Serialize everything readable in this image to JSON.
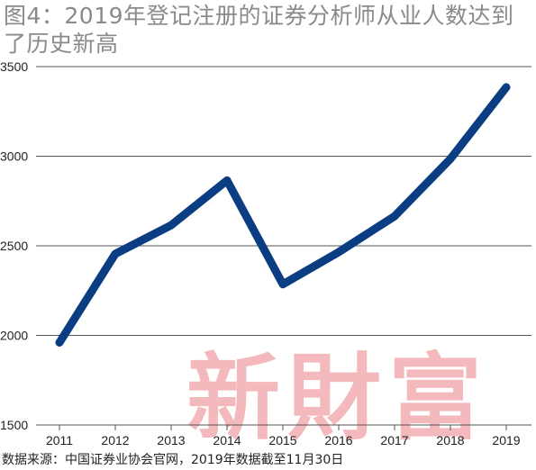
{
  "title": "图4：2019年登记注册的证券分析师从业人数达到了历史新高",
  "source": "数据来源：中国证券业协会官网，2019年数据截至11月30日",
  "watermark": "新財富",
  "colors": {
    "line": "#0b3d82",
    "grid": "#555555",
    "title": "#8a8a8a",
    "watermark": "#f3b9bd"
  },
  "chart_data": {
    "type": "line",
    "title": "图4：2019年登记注册的证券分析师从业人数达到了历史新高",
    "xlabel": "",
    "ylabel": "",
    "categories": [
      "2011",
      "2012",
      "2013",
      "2014",
      "2015",
      "2016",
      "2017",
      "2018",
      "2019"
    ],
    "series": [
      {
        "values": [
          1960,
          2455,
          2615,
          2865,
          2285,
          2465,
          2665,
          2985,
          3385
        ]
      }
    ],
    "ylim": [
      1500,
      3500
    ],
    "yticks": [
      1500,
      2000,
      2500,
      3000,
      3500
    ],
    "grid": "horizontal",
    "legend": "none"
  }
}
